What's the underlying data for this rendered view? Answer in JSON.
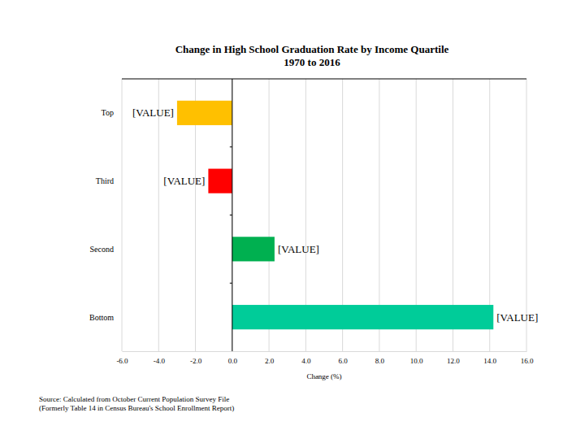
{
  "chart_data": {
    "type": "bar",
    "title": "Change in High School Graduation Rate by Income Quartile",
    "subtitle": "1970 to 2016",
    "x_label": "Change (%)",
    "source": [
      "Source: Calculated from October Current Population Survey File",
      "(Formerly Table 14 in Census Bureau's School Enrollment Report)"
    ],
    "categories": [
      "Top",
      "Third",
      "Second",
      "Bottom"
    ],
    "values": [
      -3.0,
      -1.3,
      2.3,
      14.2
    ],
    "value_labels": [
      "[VALUE]",
      "[VALUE]",
      "[VALUE]",
      "[VALUE]"
    ],
    "colors": [
      "#ffc000",
      "#ff0000",
      "#00b050",
      "#00cc99"
    ],
    "orientation": "horizontal",
    "data_labels": true,
    "grid": true,
    "xlim": [
      -6,
      16
    ],
    "xticks": [
      {
        "value": -6,
        "label": "-6.0"
      },
      {
        "value": -4,
        "label": "-4.0"
      },
      {
        "value": -2,
        "label": "-2.0"
      },
      {
        "value": 0,
        "label": "0.0"
      },
      {
        "value": 2,
        "label": "2.0"
      },
      {
        "value": 4,
        "label": "4.0"
      },
      {
        "value": 6,
        "label": "6.0"
      },
      {
        "value": 8,
        "label": "8.0"
      },
      {
        "value": 10,
        "label": "10.0"
      },
      {
        "value": 12,
        "label": "12.0"
      },
      {
        "value": 14,
        "label": "14.0"
      },
      {
        "value": 16,
        "label": "16.0"
      }
    ]
  }
}
